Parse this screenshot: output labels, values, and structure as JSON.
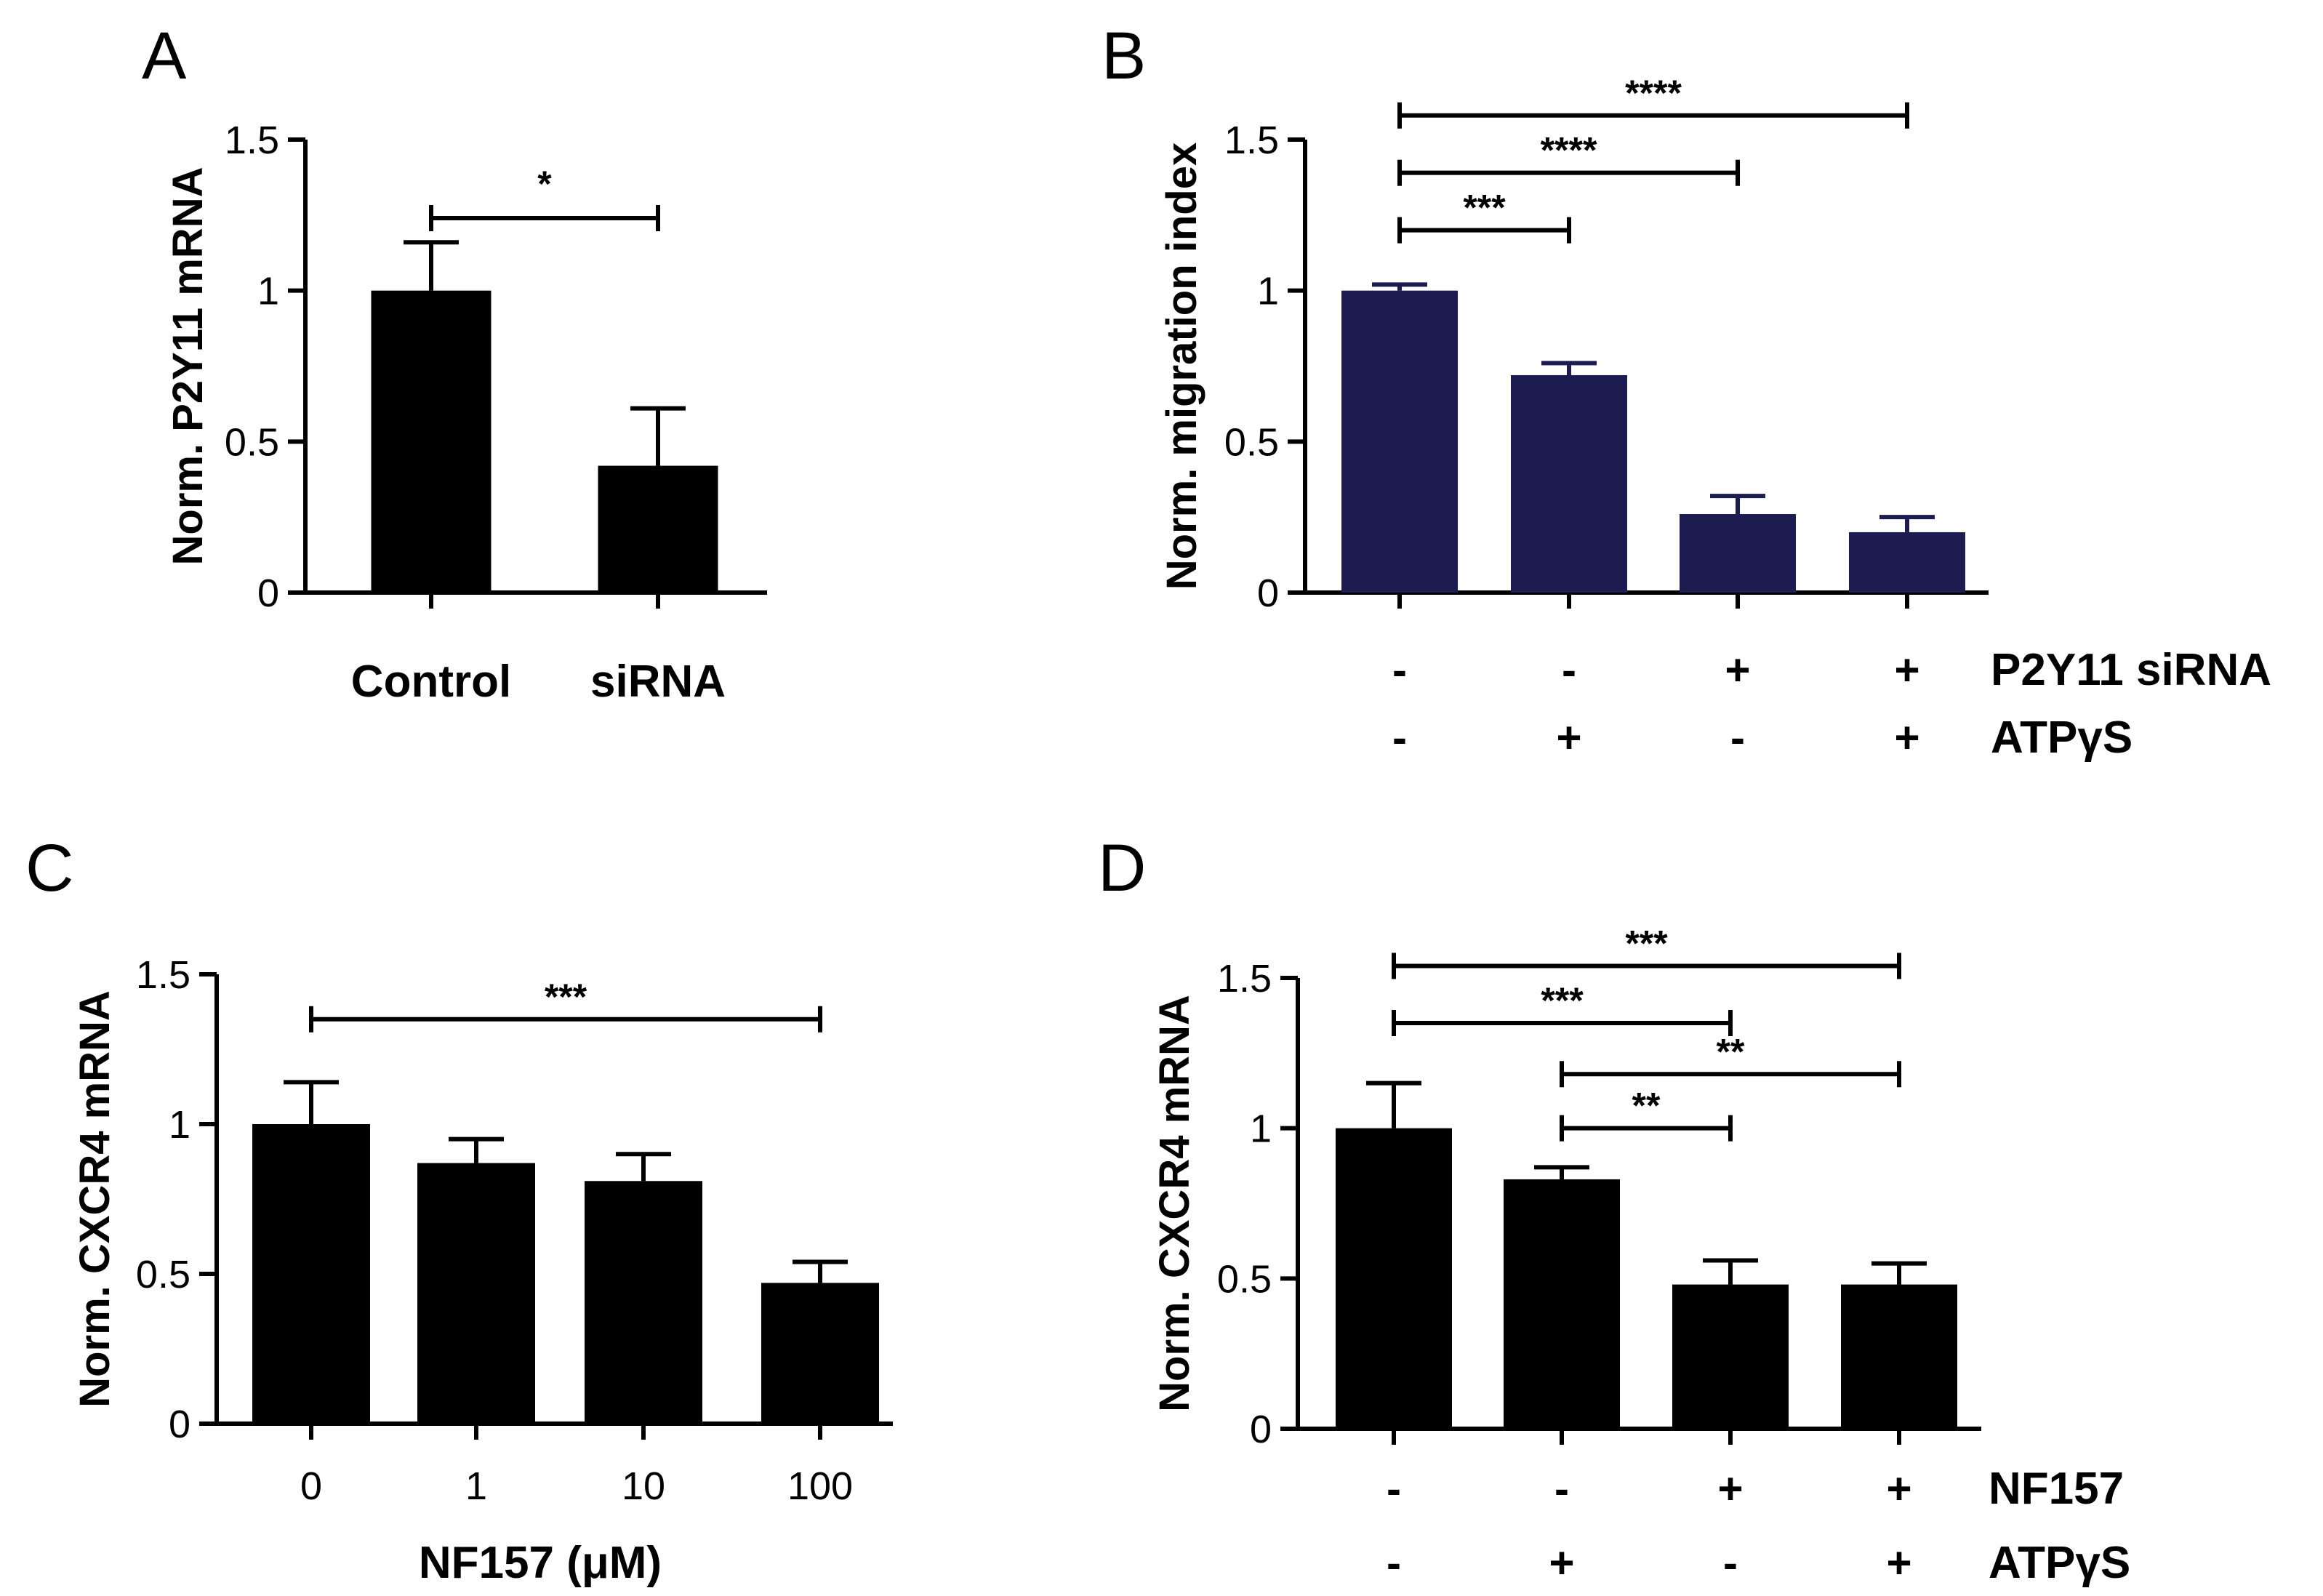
{
  "colors": {
    "black": "#000000",
    "navy": "#1c1c50"
  },
  "chart_data": [
    {
      "id": "A",
      "panel_label": "A",
      "type": "bar",
      "color": "#000000",
      "ylabel": "Norm. P2Y11 mRNA",
      "ylim": [
        0,
        1.5
      ],
      "yticks": [
        "0",
        "0.5",
        "1",
        "1.5"
      ],
      "categories": [
        "Control",
        "siRNA"
      ],
      "values": [
        1.0,
        0.42
      ],
      "errors": [
        0.16,
        0.19
      ],
      "comparisons": [
        {
          "from": 0,
          "to": 1,
          "y": 1.24,
          "label": "*"
        }
      ]
    },
    {
      "id": "B",
      "panel_label": "B",
      "type": "bar",
      "color": "#1c1c50",
      "ylabel": "Norm. migration index",
      "ylim": [
        0,
        1.5
      ],
      "yticks": [
        "0",
        "0.5",
        "1",
        "1.5"
      ],
      "categories": [
        "Control",
        "ATPγS",
        "P2Y11 siRNA",
        "P2Y11 siRNA + ATPγS"
      ],
      "values": [
        1.0,
        0.72,
        0.26,
        0.2
      ],
      "errors": [
        0.02,
        0.04,
        0.06,
        0.05
      ],
      "conditions": [
        {
          "name": "P2Y11 siRNA",
          "signs": [
            "-",
            "-",
            "+",
            "+"
          ]
        },
        {
          "name": "ATPγS",
          "signs": [
            "-",
            "+",
            "-",
            "+"
          ]
        }
      ],
      "comparisons": [
        {
          "from": 0,
          "to": 1,
          "y": 1.2,
          "label": "***"
        },
        {
          "from": 0,
          "to": 2,
          "y": 1.39,
          "label": "****"
        },
        {
          "from": 0,
          "to": 3,
          "y": 1.58,
          "label": "****"
        }
      ]
    },
    {
      "id": "C",
      "panel_label": "C",
      "type": "bar",
      "color": "#000000",
      "ylabel": "Norm. CXCR4 mRNA",
      "ylim": [
        0,
        1.5
      ],
      "yticks": [
        "0",
        "0.5",
        "1",
        "1.5"
      ],
      "categories": [
        "0",
        "1",
        "10",
        "100"
      ],
      "xlabel": "NF157 (μM)",
      "values": [
        1.0,
        0.87,
        0.81,
        0.47
      ],
      "errors": [
        0.14,
        0.08,
        0.09,
        0.07
      ],
      "comparisons": [
        {
          "from": 0,
          "to": 3,
          "y": 1.35,
          "label": "***"
        }
      ]
    },
    {
      "id": "D",
      "panel_label": "D",
      "type": "bar",
      "color": "#000000",
      "ylabel": "Norm. CXCR4 mRNA",
      "ylim": [
        0,
        1.5
      ],
      "yticks": [
        "0",
        "0.5",
        "1",
        "1.5"
      ],
      "categories": [
        "Control",
        "ATPγS",
        "NF157",
        "NF157 + ATPγS"
      ],
      "values": [
        1.0,
        0.83,
        0.48,
        0.48
      ],
      "errors": [
        0.15,
        0.04,
        0.08,
        0.07
      ],
      "conditions": [
        {
          "name": "NF157",
          "signs": [
            "-",
            "-",
            "+",
            "+"
          ]
        },
        {
          "name": "ATPγS",
          "signs": [
            "-",
            "+",
            "-",
            "+"
          ]
        }
      ],
      "comparisons": [
        {
          "from": 1,
          "to": 2,
          "y": 1.0,
          "label": "**"
        },
        {
          "from": 1,
          "to": 3,
          "y": 1.18,
          "label": "**"
        },
        {
          "from": 0,
          "to": 2,
          "y": 1.35,
          "label": "***"
        },
        {
          "from": 0,
          "to": 3,
          "y": 1.54,
          "label": "***"
        }
      ]
    }
  ]
}
